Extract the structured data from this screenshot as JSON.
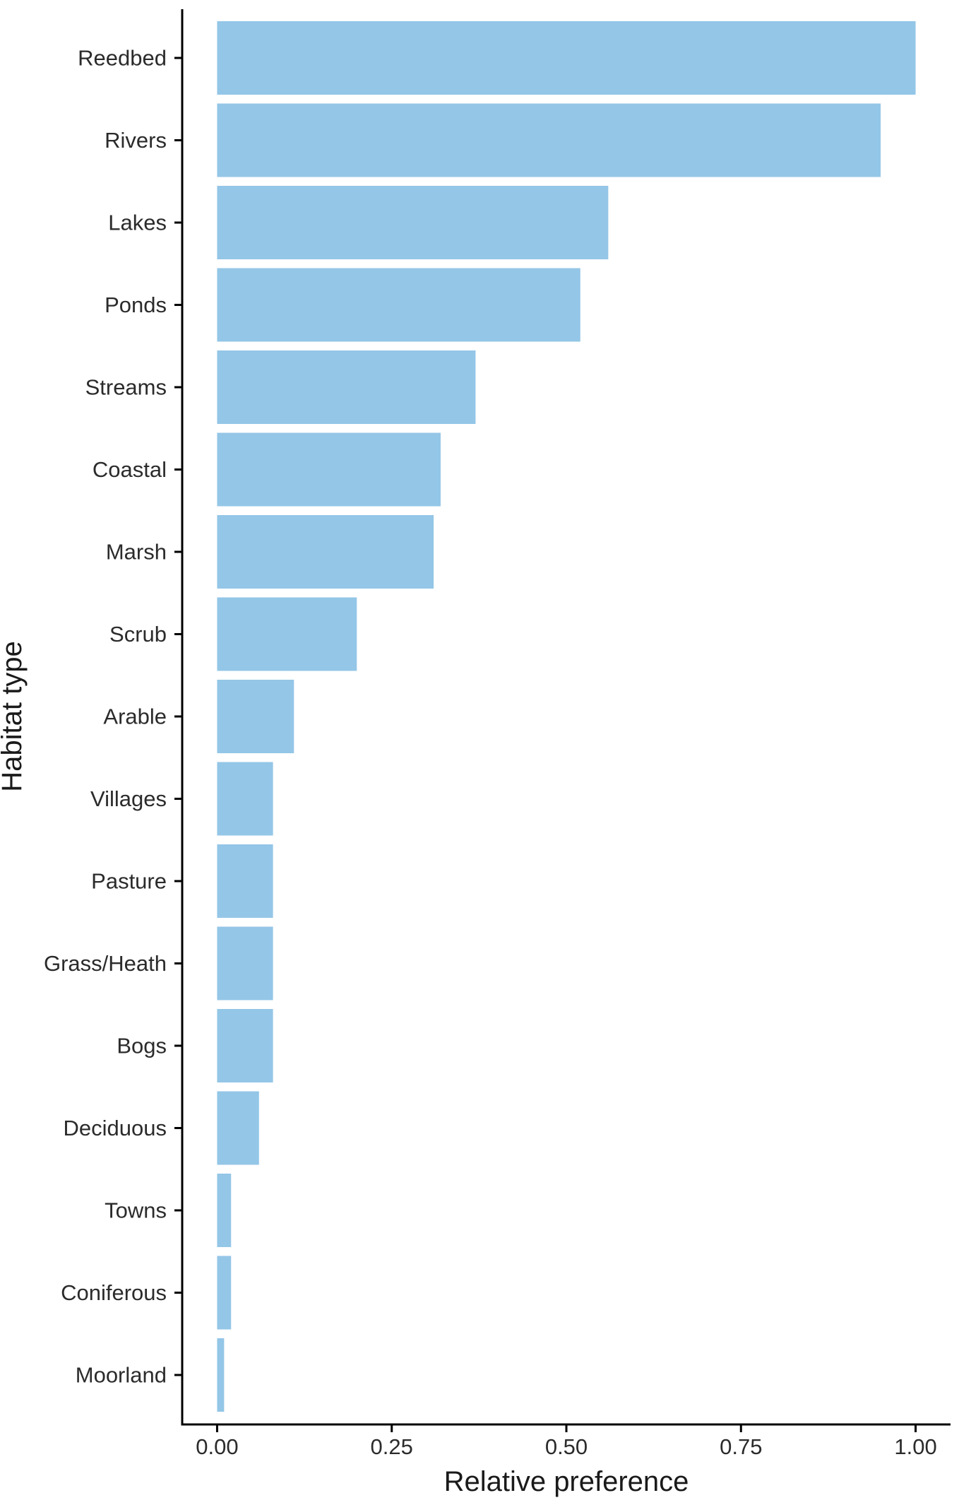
{
  "chart_data": {
    "type": "bar",
    "orientation": "horizontal",
    "title": "",
    "xlabel": "Relative preference",
    "ylabel": "Habitat type",
    "xlim": [
      -0.05,
      1.05
    ],
    "xticks": [
      0.0,
      0.25,
      0.5,
      0.75,
      1.0
    ],
    "xtick_labels": [
      "0.00",
      "0.25",
      "0.50",
      "0.75",
      "1.00"
    ],
    "categories": [
      "Reedbed",
      "Rivers",
      "Lakes",
      "Ponds",
      "Streams",
      "Coastal",
      "Marsh",
      "Scrub",
      "Arable",
      "Villages",
      "Pasture",
      "Grass/Heath",
      "Bogs",
      "Deciduous",
      "Towns",
      "Coniferous",
      "Moorland"
    ],
    "values": [
      1.0,
      0.95,
      0.56,
      0.52,
      0.37,
      0.32,
      0.31,
      0.2,
      0.11,
      0.08,
      0.08,
      0.08,
      0.08,
      0.06,
      0.02,
      0.02,
      0.01
    ],
    "grid": false,
    "legend": "none",
    "bar_color": "#94C6E7"
  }
}
